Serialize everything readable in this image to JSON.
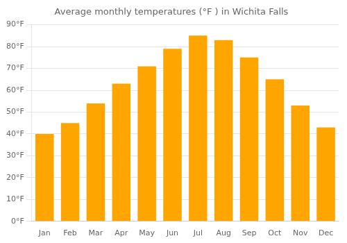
{
  "chart_data": {
    "type": "bar",
    "title": "Average monthly temperatures (°F ) in Wichita Falls",
    "categories": [
      "Jan",
      "Feb",
      "Mar",
      "Apr",
      "May",
      "Jun",
      "Jul",
      "Aug",
      "Sep",
      "Oct",
      "Nov",
      "Dec"
    ],
    "values": [
      40,
      45,
      54,
      63,
      71,
      79,
      85,
      83,
      75,
      65,
      53,
      43
    ],
    "color": "#FFA500",
    "ylim": [
      0,
      90
    ],
    "yticks": [
      {
        "value": 0,
        "label": "0°F"
      },
      {
        "value": 10,
        "label": "10°F"
      },
      {
        "value": 20,
        "label": "20°F"
      },
      {
        "value": 30,
        "label": "30°F"
      },
      {
        "value": 40,
        "label": "40°F"
      },
      {
        "value": 50,
        "label": "50°F"
      },
      {
        "value": 60,
        "label": "60°F"
      },
      {
        "value": 70,
        "label": "70°F"
      },
      {
        "value": 80,
        "label": "80°F"
      },
      {
        "value": 90,
        "label": "90°F"
      }
    ],
    "grid": true
  }
}
